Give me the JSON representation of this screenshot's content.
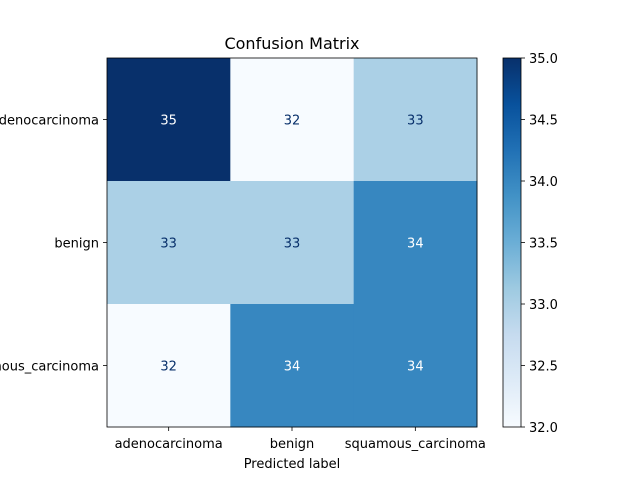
{
  "chart_data": {
    "type": "heatmap",
    "title": "Confusion Matrix",
    "xlabel": "Predicted label",
    "ylabel": "",
    "x_categories": [
      "adenocarcinoma",
      "benign",
      "squamous_carcinoma"
    ],
    "y_categories": [
      "adenocarcinoma",
      "benign",
      "squamous_carcinoma"
    ],
    "values": [
      [
        35,
        32,
        33
      ],
      [
        33,
        33,
        34
      ],
      [
        32,
        34,
        34
      ]
    ],
    "colormap": "Blues",
    "color_range": [
      32.0,
      35.0
    ],
    "colorbar_ticks": [
      "32.0",
      "32.5",
      "33.0",
      "33.5",
      "34.0",
      "34.5",
      "35.0"
    ],
    "colorbar_tick_values": [
      32.0,
      32.5,
      33.0,
      33.5,
      34.0,
      34.5,
      35.0
    ],
    "colors": {
      "light_text": "#ffffff",
      "dark_text": "#08306b"
    }
  }
}
